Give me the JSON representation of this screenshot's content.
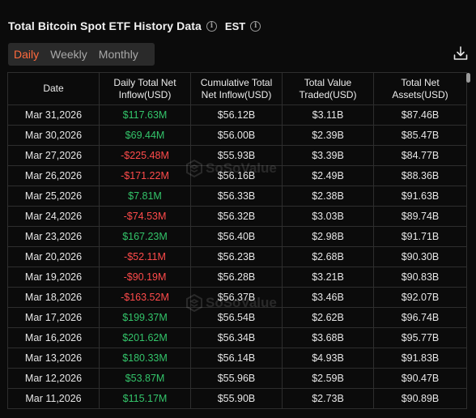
{
  "header": {
    "title": "Total Bitcoin Spot ETF History Data",
    "timezone": "EST"
  },
  "tabs": [
    {
      "label": "Daily",
      "active": true
    },
    {
      "label": "Weekly",
      "active": false
    },
    {
      "label": "Monthly",
      "active": false
    }
  ],
  "table": {
    "columns": [
      "Date",
      "Daily Total Net Inflow(USD)",
      "Cumulative Total Net Inflow(USD)",
      "Total Value Traded(USD)",
      "Total Net Assets(USD)"
    ],
    "rows": [
      {
        "date": "Mar 31,2026",
        "daily": "$117.63M",
        "cumulative": "$56.12B",
        "traded": "$3.11B",
        "assets": "$87.46B",
        "sign": "pos"
      },
      {
        "date": "Mar 30,2026",
        "daily": "$69.44M",
        "cumulative": "$56.00B",
        "traded": "$2.39B",
        "assets": "$85.47B",
        "sign": "pos"
      },
      {
        "date": "Mar 27,2026",
        "daily": "-$225.48M",
        "cumulative": "$55.93B",
        "traded": "$3.39B",
        "assets": "$84.77B",
        "sign": "neg"
      },
      {
        "date": "Mar 26,2026",
        "daily": "-$171.22M",
        "cumulative": "$56.16B",
        "traded": "$2.49B",
        "assets": "$88.36B",
        "sign": "neg"
      },
      {
        "date": "Mar 25,2026",
        "daily": "$7.81M",
        "cumulative": "$56.33B",
        "traded": "$2.38B",
        "assets": "$91.63B",
        "sign": "pos"
      },
      {
        "date": "Mar 24,2026",
        "daily": "-$74.53M",
        "cumulative": "$56.32B",
        "traded": "$3.03B",
        "assets": "$89.74B",
        "sign": "neg"
      },
      {
        "date": "Mar 23,2026",
        "daily": "$167.23M",
        "cumulative": "$56.40B",
        "traded": "$2.98B",
        "assets": "$91.71B",
        "sign": "pos"
      },
      {
        "date": "Mar 20,2026",
        "daily": "-$52.11M",
        "cumulative": "$56.23B",
        "traded": "$2.68B",
        "assets": "$90.30B",
        "sign": "neg"
      },
      {
        "date": "Mar 19,2026",
        "daily": "-$90.19M",
        "cumulative": "$56.28B",
        "traded": "$3.21B",
        "assets": "$90.83B",
        "sign": "neg"
      },
      {
        "date": "Mar 18,2026",
        "daily": "-$163.52M",
        "cumulative": "$56.37B",
        "traded": "$3.46B",
        "assets": "$92.07B",
        "sign": "neg"
      },
      {
        "date": "Mar 17,2026",
        "daily": "$199.37M",
        "cumulative": "$56.54B",
        "traded": "$2.62B",
        "assets": "$96.74B",
        "sign": "pos"
      },
      {
        "date": "Mar 16,2026",
        "daily": "$201.62M",
        "cumulative": "$56.34B",
        "traded": "$3.68B",
        "assets": "$95.77B",
        "sign": "pos"
      },
      {
        "date": "Mar 13,2026",
        "daily": "$180.33M",
        "cumulative": "$56.14B",
        "traded": "$4.93B",
        "assets": "$91.83B",
        "sign": "pos"
      },
      {
        "date": "Mar 12,2026",
        "daily": "$53.87M",
        "cumulative": "$55.96B",
        "traded": "$2.59B",
        "assets": "$90.47B",
        "sign": "pos"
      },
      {
        "date": "Mar 11,2026",
        "daily": "$115.17M",
        "cumulative": "$55.90B",
        "traded": "$2.73B",
        "assets": "$90.89B",
        "sign": "pos"
      }
    ]
  },
  "watermark": {
    "text": "SoSoValue"
  },
  "colors": {
    "accent": "#ff6a3d",
    "positive": "#33c46a",
    "negative": "#ff4b4b"
  },
  "icons": {
    "download": "download-icon",
    "info": "info-icon"
  }
}
